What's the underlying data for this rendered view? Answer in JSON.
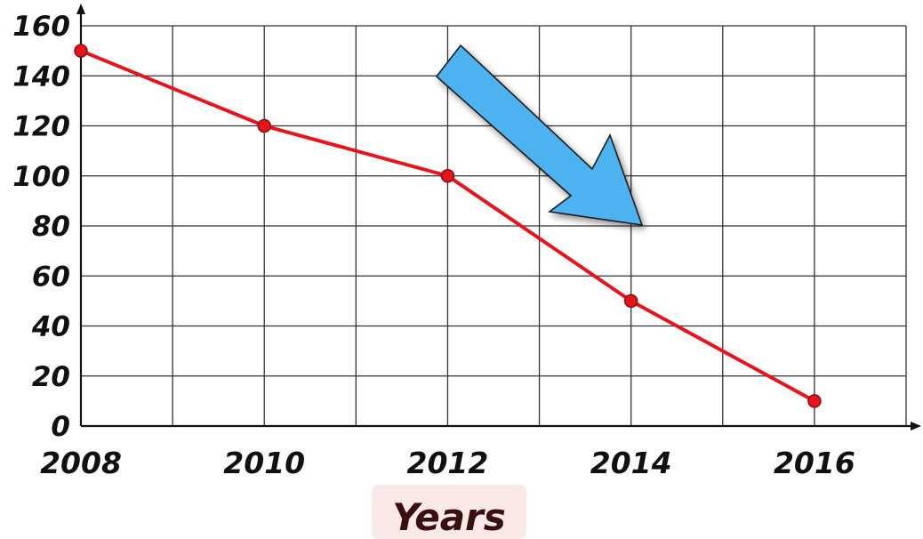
{
  "chart_data": {
    "type": "line",
    "title": "",
    "xlabel": "Years",
    "ylabel": "",
    "x": [
      2008,
      2010,
      2012,
      2014,
      2016
    ],
    "series": [
      {
        "values": [
          150,
          120,
          100,
          50,
          10
        ],
        "color": "#e8141b"
      }
    ],
    "xlim": [
      2008,
      2017
    ],
    "ylim": [
      0,
      160
    ],
    "x_ticks": [
      2008,
      2010,
      2012,
      2014,
      2016
    ],
    "y_ticks": [
      0,
      20,
      40,
      60,
      80,
      100,
      120,
      140,
      160
    ],
    "x_tick_labels": [
      "2008",
      "2010",
      "2012",
      "2014",
      "2016"
    ],
    "y_tick_labels": [
      "0",
      "20",
      "40",
      "60",
      "80",
      "100",
      "120",
      "140",
      "160"
    ],
    "x_grid_step": 1,
    "y_grid_step": 20,
    "grid": true,
    "annotations": [
      {
        "type": "arrow",
        "description": "downward-trend",
        "color": "#4db3f0"
      }
    ]
  },
  "colors": {
    "line": "#e8141b",
    "marker_fill": "#e8141b",
    "marker_stroke": "#8a0d12",
    "grid": "#333333",
    "axis": "#111111",
    "arrow_fill": "#4db3f0",
    "arrow_stroke": "#1a1a1a",
    "xlabel_background": "#fbe9e7"
  }
}
